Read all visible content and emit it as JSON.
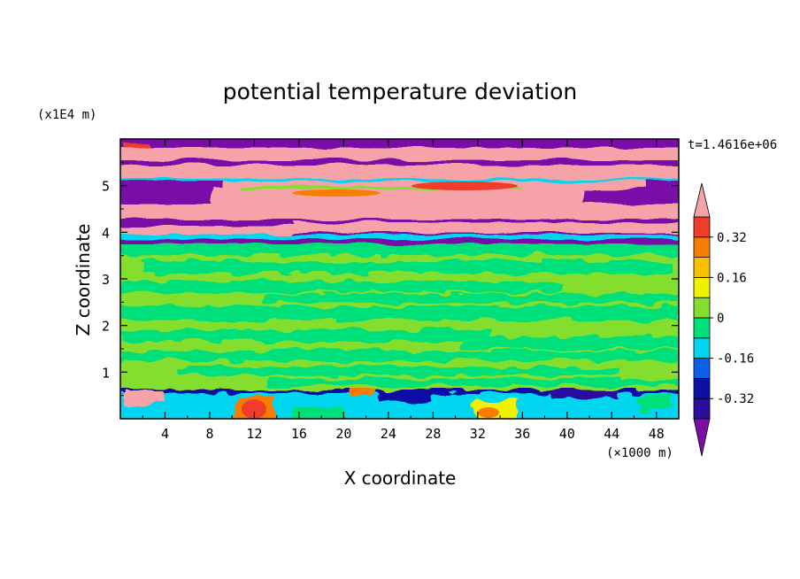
{
  "chart_data": {
    "type": "heatmap",
    "title": "potential temperature deviation",
    "xlabel": "X coordinate",
    "ylabel": "Z coordinate",
    "x_unit": "(×1000 m)",
    "y_unit": "(x1E4 m)",
    "time_label": "t=1.4616e+06",
    "xlim": [
      0,
      50
    ],
    "ylim": [
      0,
      6
    ],
    "x_ticks": [
      4,
      8,
      12,
      16,
      20,
      24,
      28,
      32,
      36,
      40,
      44,
      48
    ],
    "y_ticks": [
      1,
      2,
      3,
      4,
      5
    ],
    "colorbar": {
      "levels": [
        -0.4,
        -0.32,
        -0.24,
        -0.16,
        -0.08,
        0,
        0.08,
        0.16,
        0.24,
        0.32,
        0.4
      ],
      "tick_labels": [
        "-0.32",
        "-0.16",
        "0",
        "0.16",
        "0.32"
      ],
      "tick_values": [
        -0.32,
        -0.16,
        0,
        0.16,
        0.32
      ],
      "under_color": "#7a0fa8",
      "over_color": "#f5a3a8",
      "colors": [
        "#2b0ea0",
        "#0a10a5",
        "#0a5fe6",
        "#00d6f0",
        "#00e07a",
        "#84de2e",
        "#f2f200",
        "#f7c000",
        "#f77d00",
        "#f03c2a"
      ]
    },
    "bands": [
      {
        "z": [
          0,
          0.65
        ],
        "description": "lower boundary layer, mixed values"
      },
      {
        "z": [
          0.65,
          3.85
        ],
        "description": "near-zero deviation (-0.08 to 0.08)"
      },
      {
        "z": [
          3.85,
          6
        ],
        "description": "alternating strong positive/negative layers"
      }
    ]
  }
}
